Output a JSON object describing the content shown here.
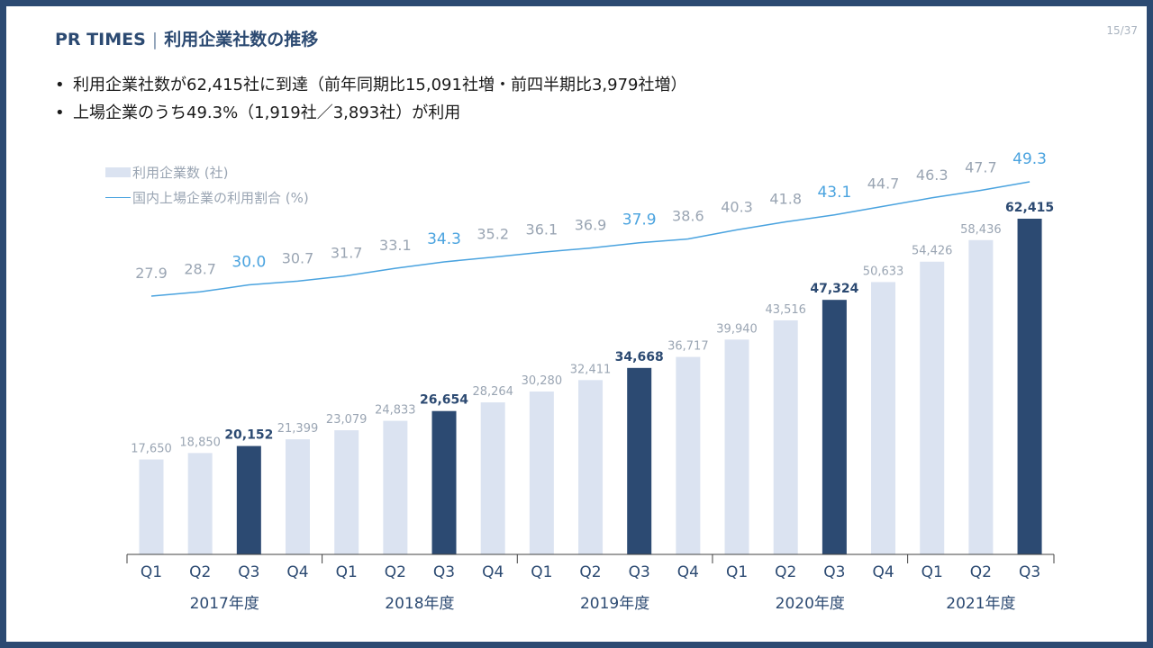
{
  "header": {
    "brand": "PR TIMES",
    "title": "利用企業社数の推移",
    "page": "15/37"
  },
  "bullets": [
    "利用企業社数が62,415社に到達（前年同期比15,091社増・前四半期比3,979社増）",
    "上場企業のうち49.3%（1,919社／3,893社）が利用"
  ],
  "chart_data": {
    "type": "bar",
    "categories": [
      "Q1",
      "Q2",
      "Q3",
      "Q4",
      "Q1",
      "Q2",
      "Q3",
      "Q4",
      "Q1",
      "Q2",
      "Q3",
      "Q4",
      "Q1",
      "Q2",
      "Q3",
      "Q4",
      "Q1",
      "Q2",
      "Q3"
    ],
    "category_groups": [
      {
        "label": "2017年度",
        "count": 4
      },
      {
        "label": "2018年度",
        "count": 4
      },
      {
        "label": "2019年度",
        "count": 4
      },
      {
        "label": "2020年度",
        "count": 4
      },
      {
        "label": "2021年度",
        "count": 3
      }
    ],
    "series": [
      {
        "name": "利用企業数 (社)",
        "type": "bar",
        "values": [
          17650,
          18850,
          20152,
          21399,
          23079,
          24833,
          26654,
          28264,
          30280,
          32411,
          34668,
          36717,
          39940,
          43516,
          47324,
          50633,
          54426,
          58436,
          62415
        ],
        "labels": [
          "17,650",
          "18,850",
          "20,152",
          "21,399",
          "23,079",
          "24,833",
          "26,654",
          "28,264",
          "30,280",
          "32,411",
          "34,668",
          "36,717",
          "39,940",
          "43,516",
          "47,324",
          "50,633",
          "54,426",
          "58,436",
          "62,415"
        ]
      },
      {
        "name": "国内上場企業の利用割合 (%)",
        "type": "line",
        "values": [
          27.9,
          28.7,
          30.0,
          30.7,
          31.7,
          33.1,
          34.3,
          35.2,
          36.1,
          36.9,
          37.9,
          38.6,
          40.3,
          41.8,
          43.1,
          44.7,
          46.3,
          47.7,
          49.3
        ],
        "labels": [
          "27.9",
          "28.7",
          "30.0",
          "30.7",
          "31.7",
          "33.1",
          "34.3",
          "35.2",
          "36.1",
          "36.9",
          "37.9",
          "38.6",
          "40.3",
          "41.8",
          "43.1",
          "44.7",
          "46.3",
          "47.7",
          "49.3"
        ]
      }
    ],
    "highlight_indices": [
      2,
      6,
      10,
      14,
      18
    ],
    "colors": {
      "bar": "#dbe3f1",
      "bar_highlight": "#2c4a72",
      "bar_label": "#9aa5b3",
      "bar_label_highlight": "#2c4a72",
      "line": "#4aa3df",
      "line_label": "#9aa5b3",
      "line_label_highlight": "#4aa3df",
      "axis": "#404040",
      "axis_label": "#2c4a72"
    },
    "legend_position": "top-left",
    "grid": false
  }
}
